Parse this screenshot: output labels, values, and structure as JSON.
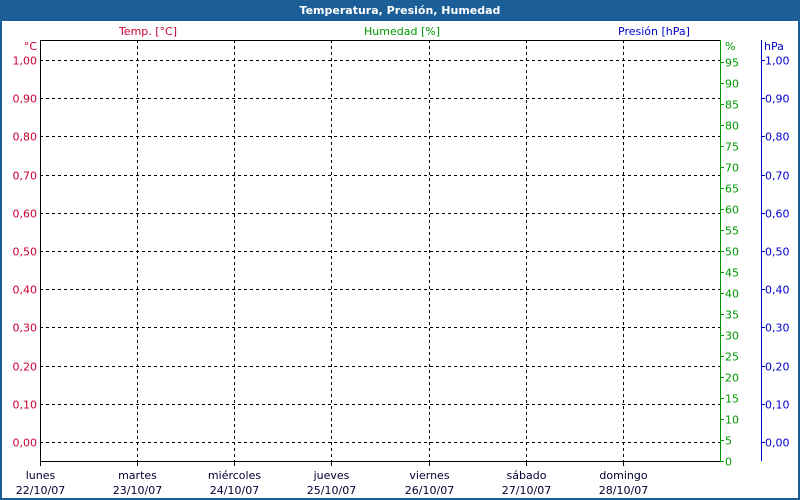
{
  "window": {
    "title": "Temperatura, Presión, Humedad"
  },
  "colors": {
    "temp": "#cc0033",
    "humidity": "#009900",
    "pressure": "#0000cc",
    "titlebar": "#1c5f98"
  },
  "chart_data": {
    "type": "line",
    "title": "Temperatura, Presión, Humedad",
    "grid": true,
    "series": [],
    "x_ticks": [
      {
        "day": "lunes",
        "date": "22/10/07"
      },
      {
        "day": "martes",
        "date": "23/10/07"
      },
      {
        "day": "miércoles",
        "date": "24/10/07"
      },
      {
        "day": "jueves",
        "date": "25/10/07"
      },
      {
        "day": "viernes",
        "date": "26/10/07"
      },
      {
        "day": "sábado",
        "date": "27/10/07"
      },
      {
        "day": "domingo",
        "date": "28/10/07"
      }
    ],
    "axes": {
      "temp": {
        "label": "Temp. [°C]",
        "unit": "°C",
        "ylim": [
          0,
          1
        ],
        "ticks": [
          "0,00",
          "0,10",
          "0,20",
          "0,30",
          "0,40",
          "0,50",
          "0,60",
          "0,70",
          "0,80",
          "0,90",
          "1,00"
        ]
      },
      "humidity": {
        "label": "Humedad [%]",
        "unit": "%",
        "ylim": [
          0,
          100
        ],
        "ticks": [
          "0",
          "5",
          "10",
          "15",
          "20",
          "25",
          "30",
          "35",
          "40",
          "45",
          "50",
          "55",
          "60",
          "65",
          "70",
          "75",
          "80",
          "85",
          "90",
          "95"
        ]
      },
      "pressure": {
        "label": "Presión [hPa]",
        "unit": "hPa",
        "ylim": [
          0,
          1
        ],
        "ticks": [
          "0,00",
          "0,10",
          "0,20",
          "0,30",
          "0,40",
          "0,50",
          "0,60",
          "0,70",
          "0,80",
          "0,90",
          "1,00"
        ]
      }
    }
  }
}
